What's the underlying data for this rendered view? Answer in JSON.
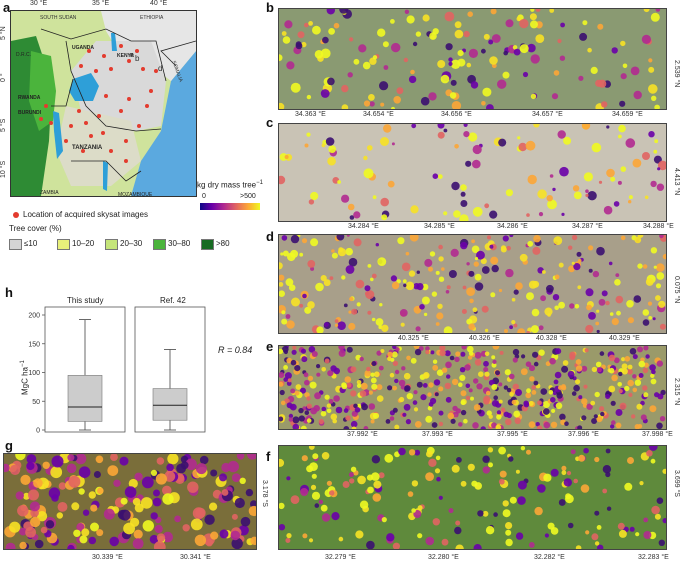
{
  "panel_labels": {
    "a": "a",
    "b": "b",
    "c": "c",
    "d": "d",
    "e": "e",
    "f": "f",
    "g": "g",
    "h": "h"
  },
  "map": {
    "lon_ticks": [
      "30 °E",
      "35 °E",
      "40 °E"
    ],
    "lat_ticks": [
      "5 °N",
      "0 °",
      "5 °S",
      "10 °S"
    ],
    "places": {
      "south_sudan": "SOUTH SUDAN",
      "ethiopia": "ETHIOPIA",
      "somalia": "SOMALIA",
      "uganda": "UGANDA",
      "kenya": "KENYA",
      "drc": "D.R.C.",
      "rwanda": "RWANDA",
      "burundi": "BURUNDI",
      "tanzania": "TANZANIA",
      "zambia": "ZAMBIA",
      "mozambique": "MOZAMBIQUE"
    },
    "map_letters": {
      "b": "b",
      "d": "d",
      "e": "e"
    },
    "location_legend": "Location of acquired skysat images"
  },
  "colorbar": {
    "title": "kg dry mass tree",
    "title_sup": "−1",
    "min": "0",
    "max": ">500"
  },
  "tree_cover": {
    "title": "Tree cover (%)",
    "classes": [
      {
        "label": "≤10",
        "color": "#d4d4d4"
      },
      {
        "label": "10–20",
        "color": "#e8f07a"
      },
      {
        "label": "20–30",
        "color": "#c5e57a"
      },
      {
        "label": "30–80",
        "color": "#4bb43c"
      },
      {
        "label": ">80",
        "color": "#176b22"
      }
    ]
  },
  "panels": {
    "b": {
      "x_ticks": [
        "34.363 °E",
        "34.654 °E",
        "34.656 °E",
        "34.657 °E",
        "34.659 °E"
      ],
      "lat": "2.539 °N"
    },
    "c": {
      "x_ticks": [
        "34.284 °E",
        "34.285 °E",
        "34.286 °E",
        "34.287 °E",
        "34.288 °E"
      ],
      "lat": "4.413 °N"
    },
    "d": {
      "x_ticks": [
        "40.325 °E",
        "40.326 °E",
        "40.328 °E",
        "40.329 °E"
      ],
      "lat": "0.075 °N"
    },
    "e": {
      "x_ticks": [
        "37.992 °E",
        "37.993 °E",
        "37.995 °E",
        "37.996 °E",
        "37.998 °E"
      ],
      "lat": "2.315 °N"
    },
    "f": {
      "x_ticks": [
        "32.279 °E",
        "32.280 °E",
        "32.282 °E",
        "32.283 °E"
      ],
      "lat": "3.699 °S"
    },
    "g": {
      "x_ticks": [
        "30.339 °E",
        "30.341 °E"
      ],
      "lat": "3.178 °S"
    }
  },
  "chart_data": {
    "type": "box",
    "ylabel": "MgC ha",
    "ylabel_sup": "−1",
    "ylim": [
      0,
      200
    ],
    "y_ticks": [
      0,
      50,
      100,
      150,
      200
    ],
    "annotation": "R = 0.84",
    "series": [
      {
        "name": "This study",
        "whisker_low": 0,
        "q1": 15,
        "median": 40,
        "q3": 95,
        "whisker_high": 192
      },
      {
        "name": "Ref. 42",
        "whisker_low": 0,
        "q1": 17,
        "median": 43,
        "q3": 72,
        "whisker_high": 140
      }
    ],
    "box_color": "#cccccc"
  }
}
